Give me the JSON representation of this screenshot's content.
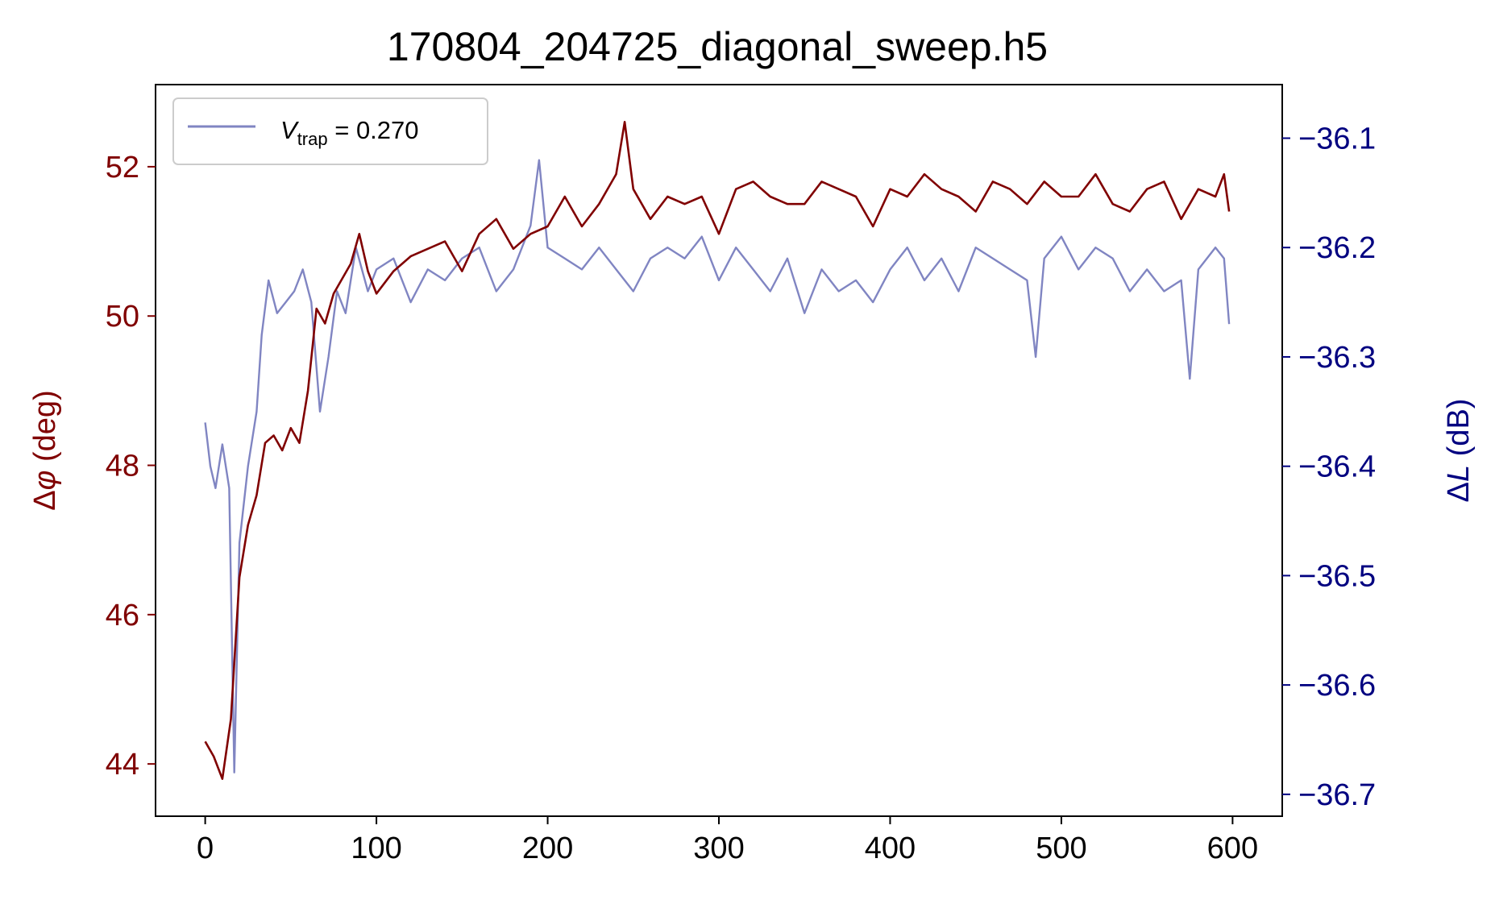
{
  "chart_data": {
    "type": "line",
    "title": "170804_204725_diagonal_sweep.h5",
    "xlabel": "",
    "ylabel_left": {
      "main": "Δ",
      "italic": "φ",
      "rest": " (deg)"
    },
    "ylabel_right": {
      "main": "Δ",
      "italic": "L",
      "rest": " (dB)"
    },
    "xlim": [
      -29,
      629
    ],
    "ylim_left": [
      43.3,
      53.1
    ],
    "ylim_right": [
      -36.72,
      -36.051
    ],
    "xticks": [
      0,
      100,
      200,
      300,
      400,
      500,
      600
    ],
    "yticks_left": [
      44,
      46,
      48,
      50,
      52
    ],
    "yticks_right": [
      -36.1,
      -36.2,
      -36.3,
      -36.4,
      -36.5,
      -36.6,
      -36.7
    ],
    "xtick_labels": [
      "0",
      "100",
      "200",
      "300",
      "400",
      "500",
      "600"
    ],
    "ytick_labels_left": [
      "44",
      "46",
      "48",
      "50",
      "52"
    ],
    "ytick_labels_right": [
      "−36.1",
      "−36.2",
      "−36.3",
      "−36.4",
      "−36.5",
      "−36.6",
      "−36.7"
    ],
    "legend": {
      "position": "upper-left",
      "label_main": "V",
      "label_sub": "trap",
      "label_rest": " = 0.270"
    },
    "colors": {
      "phase": "#800000",
      "loss": "#8085c2",
      "left_axis": "#800000",
      "right_axis": "#000080"
    },
    "series": [
      {
        "name": "Δφ",
        "axis": "left",
        "x": [
          0,
          5,
          10,
          15,
          20,
          25,
          30,
          35,
          40,
          45,
          50,
          55,
          60,
          65,
          70,
          75,
          80,
          85,
          90,
          95,
          100,
          110,
          120,
          130,
          140,
          150,
          160,
          170,
          180,
          190,
          200,
          210,
          220,
          230,
          240,
          245,
          250,
          260,
          270,
          280,
          290,
          300,
          310,
          320,
          330,
          340,
          350,
          360,
          370,
          380,
          390,
          400,
          410,
          420,
          430,
          440,
          450,
          460,
          470,
          480,
          490,
          500,
          510,
          520,
          530,
          540,
          550,
          560,
          570,
          580,
          590,
          595,
          598
        ],
        "values": [
          44.3,
          44.1,
          43.8,
          44.6,
          46.5,
          47.2,
          47.6,
          48.3,
          48.4,
          48.2,
          48.5,
          48.3,
          49.0,
          50.1,
          49.9,
          50.3,
          50.5,
          50.7,
          51.1,
          50.6,
          50.3,
          50.6,
          50.8,
          50.9,
          51.0,
          50.6,
          51.1,
          51.3,
          50.9,
          51.1,
          51.2,
          51.6,
          51.2,
          51.5,
          51.9,
          52.6,
          51.7,
          51.3,
          51.6,
          51.5,
          51.6,
          51.1,
          51.7,
          51.8,
          51.6,
          51.5,
          51.5,
          51.8,
          51.7,
          51.6,
          51.2,
          51.7,
          51.6,
          51.9,
          51.7,
          51.6,
          51.4,
          51.8,
          51.7,
          51.5,
          51.8,
          51.6,
          51.6,
          51.9,
          51.5,
          51.4,
          51.7,
          51.8,
          51.3,
          51.7,
          51.6,
          51.9,
          51.4
        ]
      },
      {
        "name": "ΔL",
        "axis": "right",
        "x": [
          0,
          3,
          6,
          10,
          14,
          17,
          20,
          25,
          30,
          33,
          37,
          42,
          47,
          52,
          57,
          62,
          67,
          72,
          77,
          82,
          88,
          95,
          100,
          110,
          120,
          130,
          140,
          150,
          160,
          170,
          180,
          190,
          195,
          200,
          210,
          220,
          230,
          240,
          250,
          260,
          270,
          280,
          290,
          300,
          310,
          320,
          330,
          340,
          350,
          360,
          370,
          380,
          390,
          400,
          410,
          420,
          430,
          440,
          450,
          460,
          470,
          480,
          485,
          490,
          500,
          510,
          520,
          530,
          540,
          550,
          560,
          570,
          575,
          580,
          590,
          595,
          598
        ],
        "values": [
          -36.36,
          -36.4,
          -36.42,
          -36.38,
          -36.42,
          -36.68,
          -36.47,
          -36.4,
          -36.35,
          -36.28,
          -36.23,
          -36.26,
          -36.25,
          -36.24,
          -36.22,
          -36.25,
          -36.35,
          -36.3,
          -36.24,
          -36.26,
          -36.2,
          -36.24,
          -36.22,
          -36.21,
          -36.25,
          -36.22,
          -36.23,
          -36.21,
          -36.2,
          -36.24,
          -36.22,
          -36.18,
          -36.12,
          -36.2,
          -36.21,
          -36.22,
          -36.2,
          -36.22,
          -36.24,
          -36.21,
          -36.2,
          -36.21,
          -36.19,
          -36.23,
          -36.2,
          -36.22,
          -36.24,
          -36.21,
          -36.26,
          -36.22,
          -36.24,
          -36.23,
          -36.25,
          -36.22,
          -36.2,
          -36.23,
          -36.21,
          -36.24,
          -36.2,
          -36.21,
          -36.22,
          -36.23,
          -36.3,
          -36.21,
          -36.19,
          -36.22,
          -36.2,
          -36.21,
          -36.24,
          -36.22,
          -36.24,
          -36.23,
          -36.32,
          -36.22,
          -36.2,
          -36.21,
          -36.27
        ]
      }
    ]
  }
}
